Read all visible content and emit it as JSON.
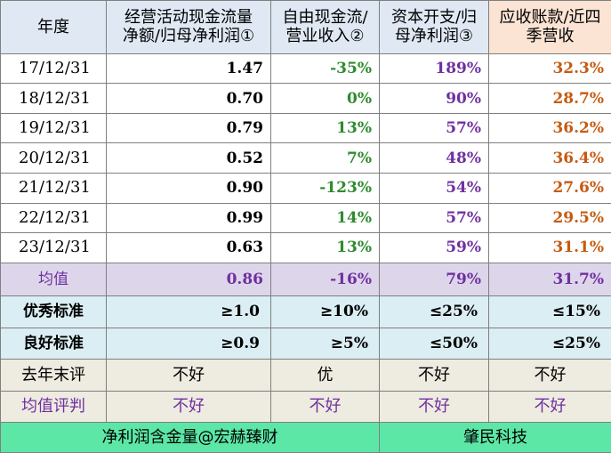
{
  "header": {
    "col0": "年度",
    "col1_line1": "经营活动现金流量",
    "col1_line2": "净额/归母净利润①",
    "col2_line1": "自由现金流/",
    "col2_line2": "营业收入②",
    "col3_line1": "资本开支/归",
    "col3_line2": "母净利润③",
    "col4_line1": "应收账款/近四",
    "col4_line2": "季营收"
  },
  "rows": [
    {
      "year": "17/12/31",
      "v1": "1.47",
      "v2": "-35%",
      "v3": "189%",
      "v4": "32.3%"
    },
    {
      "year": "18/12/31",
      "v1": "0.70",
      "v2": "0%",
      "v3": "90%",
      "v4": "28.7%"
    },
    {
      "year": "19/12/31",
      "v1": "0.79",
      "v2": "13%",
      "v3": "57%",
      "v4": "36.2%"
    },
    {
      "year": "20/12/31",
      "v1": "0.52",
      "v2": "7%",
      "v3": "48%",
      "v4": "36.4%"
    },
    {
      "year": "21/12/31",
      "v1": "0.90",
      "v2": "-123%",
      "v3": "54%",
      "v4": "27.6%"
    },
    {
      "year": "22/12/31",
      "v1": "0.99",
      "v2": "14%",
      "v3": "57%",
      "v4": "29.5%"
    },
    {
      "year": "23/12/31",
      "v1": "0.63",
      "v2": "13%",
      "v3": "59%",
      "v4": "31.1%"
    }
  ],
  "average": {
    "label": "均值",
    "v1": "0.86",
    "v2": "-16%",
    "v3": "79%",
    "v4": "31.7%"
  },
  "excellent": {
    "label": "优秀标准",
    "v1": "≥1.0",
    "v2": "≥10%",
    "v3": "≤25%",
    "v4": "≤15%"
  },
  "good": {
    "label": "良好标准",
    "v1": "≥0.9",
    "v2": "≥5%",
    "v3": "≤50%",
    "v4": "≤25%"
  },
  "last_year": {
    "label": "去年末评",
    "v1": "不好",
    "v2": "优",
    "v3": "不好",
    "v4": "不好"
  },
  "avg_judge": {
    "label": "均值评判",
    "v1": "不好",
    "v2": "不好",
    "v3": "不好",
    "v4": "不好"
  },
  "footer": {
    "left": "净利润含金量@宏赫臻财",
    "right": "肇民科技"
  },
  "colors": {
    "header_bg": "#dfe8f3",
    "header_last_bg": "#fce4d4",
    "col2_text": "#2e8b2e",
    "col3_text": "#7030a0",
    "col4_text": "#c55a11",
    "average_bg": "#ddd6ea",
    "standard_bg": "#dbeef4",
    "eval_bg": "#eeebe0",
    "footer_bg": "#5ce7a7"
  }
}
